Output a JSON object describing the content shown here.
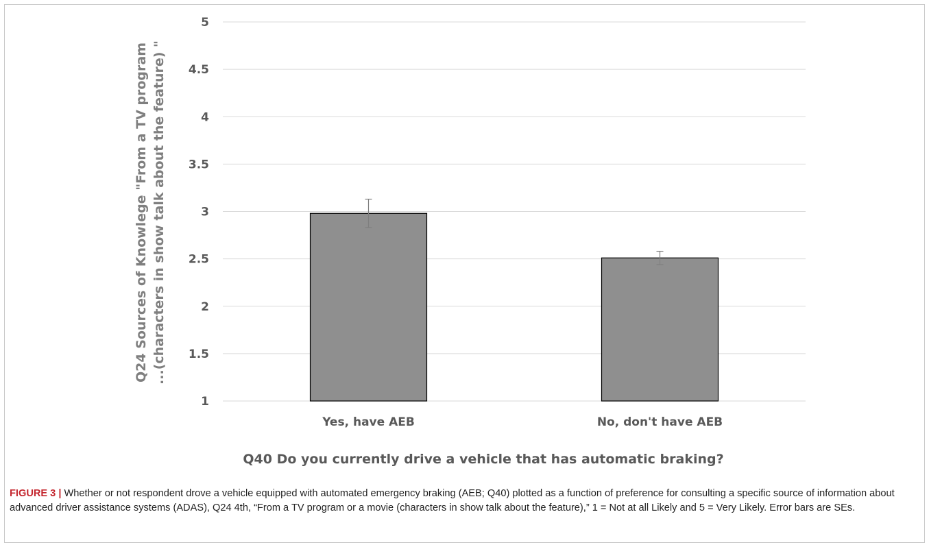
{
  "chart_data": {
    "type": "bar",
    "categories": [
      "Yes, have AEB",
      "No, don't have AEB"
    ],
    "values": [
      2.98,
      2.51
    ],
    "error_bars": [
      0.15,
      0.07
    ],
    "xlabel": "Q40 Do you currently drive a vehicle that has automatic braking?",
    "ylabel_lines": [
      "Q24 Sources of Knowlege \"From a TV program",
      "...(characters in show talk about the feature) \""
    ],
    "ylim": [
      1,
      5
    ],
    "yticks": [
      "1",
      "1.5",
      "2",
      "2.5",
      "3",
      "3.5",
      "4",
      "4.5",
      "5"
    ],
    "grid": true,
    "bar_color": "#8f8f8f"
  },
  "caption": {
    "label": "FIGURE 3",
    "separator": "|",
    "text": "Whether or not respondent drove a vehicle equipped with automated emergency braking (AEB; Q40) plotted as a function of preference for consulting a specific source of information about advanced driver assistance systems (ADAS), Q24 4th, “From a TV program or a movie (characters in show talk about the feature),” 1 = Not at all Likely and 5 = Very Likely. Error bars are SEs."
  }
}
